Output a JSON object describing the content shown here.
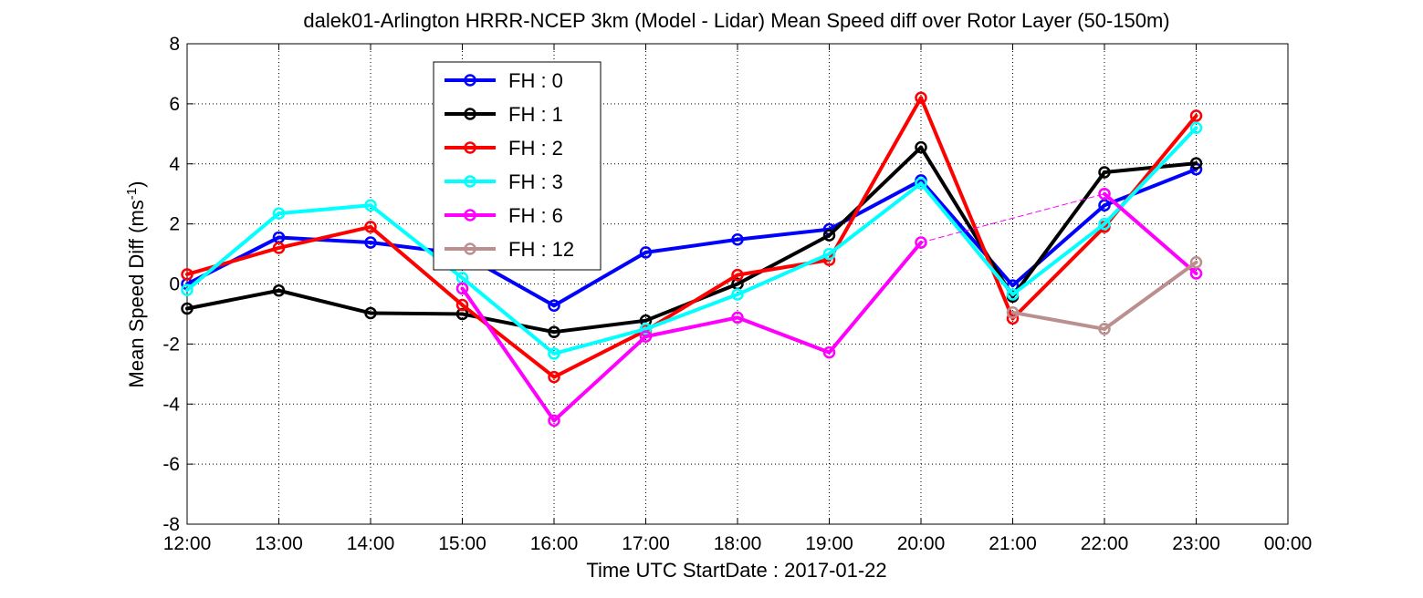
{
  "chart_data": {
    "type": "line",
    "title": "dalek01-Arlington HRRR-NCEP 3km (Model - Lidar) Mean Speed diff over Rotor Layer (50-150m)",
    "xlabel": "Time UTC    StartDate : 2017-01-22",
    "ylabel": {
      "main": "Mean Speed Diff (ms",
      "superscript": "-1",
      "close": ")"
    },
    "x_ticks": [
      "12:00",
      "13:00",
      "14:00",
      "15:00",
      "16:00",
      "17:00",
      "18:00",
      "19:00",
      "20:00",
      "21:00",
      "22:00",
      "23:00",
      "00:00"
    ],
    "y_ticks": [
      "8",
      "6",
      "4",
      "2",
      "0",
      "-2",
      "-4",
      "-6",
      "-8"
    ],
    "xlim": [
      0,
      12
    ],
    "ylim": [
      -8,
      8
    ],
    "grid": true,
    "legend_position": "upper-left",
    "series": [
      {
        "name": "FH : 0",
        "color": "#0000ff",
        "x": [
          0,
          1,
          2,
          3,
          4,
          5,
          6,
          7,
          8,
          9,
          10,
          11
        ],
        "y": [
          0.0,
          1.55,
          1.38,
          1.0,
          -0.72,
          1.05,
          1.48,
          1.82,
          3.45,
          -0.05,
          2.62,
          3.82
        ]
      },
      {
        "name": "FH : 1",
        "color": "#000000",
        "x": [
          0,
          1,
          2,
          3,
          4,
          5,
          6,
          7,
          8,
          9,
          10,
          11
        ],
        "y": [
          -0.82,
          -0.22,
          -0.97,
          -1.0,
          -1.6,
          -1.22,
          0.0,
          1.62,
          4.55,
          -0.42,
          3.72,
          4.02
        ]
      },
      {
        "name": "FH : 2",
        "color": "#ff0000",
        "x": [
          0,
          1,
          2,
          3,
          4,
          5,
          6,
          7,
          8,
          9,
          10,
          11
        ],
        "y": [
          0.32,
          1.2,
          1.9,
          -0.7,
          -3.1,
          -1.55,
          0.3,
          0.8,
          6.2,
          -1.15,
          1.9,
          5.6
        ]
      },
      {
        "name": "FH : 3",
        "color": "#00ffff",
        "x": [
          0,
          1,
          2,
          3,
          4,
          5,
          6,
          7,
          8,
          9,
          10,
          11
        ],
        "y": [
          -0.2,
          2.35,
          2.62,
          0.2,
          -2.32,
          -1.5,
          -0.35,
          1.0,
          3.35,
          -0.35,
          2.0,
          5.2
        ]
      },
      {
        "name": "FH : 6",
        "color": "#ff00ff",
        "x": [
          3,
          4,
          5,
          6,
          7,
          8,
          10,
          11
        ],
        "y": [
          -0.15,
          -4.55,
          -1.75,
          -1.12,
          -2.28,
          1.38,
          3.0,
          0.35
        ]
      },
      {
        "name": "FH : 12",
        "color": "#bc8f8f",
        "x": [
          9,
          10,
          11
        ],
        "y": [
          -0.95,
          -1.5,
          0.72
        ]
      }
    ]
  }
}
